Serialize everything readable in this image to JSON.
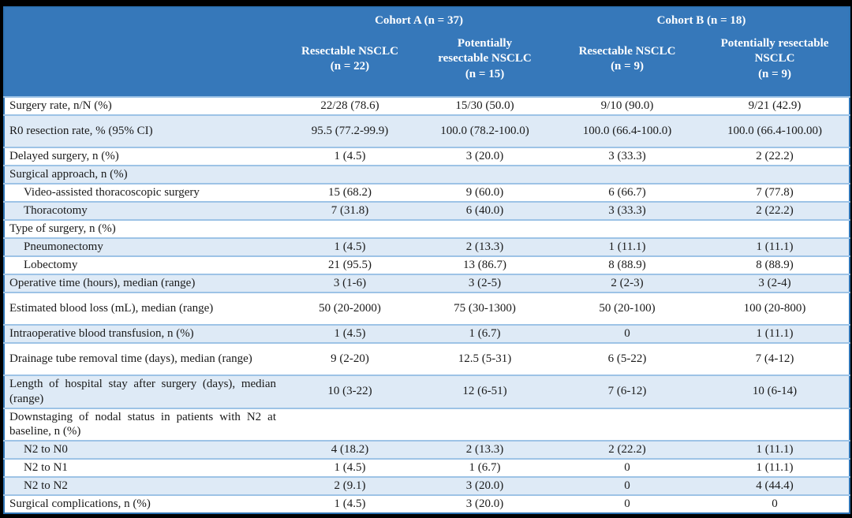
{
  "figure": {
    "description": "Surgical outcomes table for resectable and potentially resectable NSCLC cohorts"
  },
  "colors": {
    "header_blue": "#3678BA",
    "outer_border": "#2E74B5",
    "row_separator": "#9DC3E6",
    "row_shade": "#DEEAF6",
    "header_text": "#FFFFFF",
    "body_text": "#1A1A1A",
    "frame": "#000000"
  },
  "table": {
    "cohort_headers": [
      {
        "label": "Cohort A (n = 37)",
        "span": 2
      },
      {
        "label": "Cohort B (n = 18)",
        "span": 2
      }
    ],
    "column_headers": [
      "Resectable NSCLC\n(n = 22)",
      "Potentially\nresectable NSCLC\n(n = 15)",
      "Resectable NSCLC\n(n = 9)",
      "Potentially resectable\nNSCLC\n(n = 9)"
    ],
    "rows": [
      {
        "label": "Surgery rate, n/N (%)",
        "values": [
          "22/28 (78.6)",
          "15/30 (50.0)",
          "9/10 (90.0)",
          "9/21 (42.9)"
        ],
        "indent": false,
        "shaded": false,
        "tall": false
      },
      {
        "label": "R0 resection rate, % (95% CI)",
        "values": [
          "95.5 (77.2-99.9)",
          "100.0 (78.2-100.0)",
          "100.0 (66.4-100.0)",
          "100.0 (66.4-100.00)"
        ],
        "indent": false,
        "shaded": true,
        "tall": true
      },
      {
        "label": "Delayed surgery, n (%)",
        "values": [
          "1 (4.5)",
          "3 (20.0)",
          "3 (33.3)",
          "2 (22.2)"
        ],
        "indent": false,
        "shaded": false,
        "tall": false
      },
      {
        "label": "Surgical approach, n (%)",
        "values": [
          "",
          "",
          "",
          ""
        ],
        "indent": false,
        "shaded": true,
        "tall": false
      },
      {
        "label": "Video-assisted thoracoscopic surgery",
        "values": [
          "15 (68.2)",
          "9 (60.0)",
          "6 (66.7)",
          "7 (77.8)"
        ],
        "indent": true,
        "shaded": false,
        "tall": false
      },
      {
        "label": "Thoracotomy",
        "values": [
          "7 (31.8)",
          "6 (40.0)",
          "3 (33.3)",
          "2 (22.2)"
        ],
        "indent": true,
        "shaded": true,
        "tall": false
      },
      {
        "label": "Type of surgery, n (%)",
        "values": [
          "",
          "",
          "",
          ""
        ],
        "indent": false,
        "shaded": false,
        "tall": false
      },
      {
        "label": "Pneumonectomy",
        "values": [
          "1 (4.5)",
          "2 (13.3)",
          "1 (11.1)",
          "1 (11.1)"
        ],
        "indent": true,
        "shaded": true,
        "tall": false
      },
      {
        "label": "Lobectomy",
        "values": [
          "21 (95.5)",
          "13 (86.7)",
          "8 (88.9)",
          "8 (88.9)"
        ],
        "indent": true,
        "shaded": false,
        "tall": false
      },
      {
        "label": "Operative time (hours), median (range)",
        "values": [
          "3 (1-6)",
          "3 (2-5)",
          "2 (2-3)",
          "3 (2-4)"
        ],
        "indent": false,
        "shaded": true,
        "tall": false
      },
      {
        "label": "Estimated blood loss (mL), median (range)",
        "values": [
          "50 (20-2000)",
          "75 (30-1300)",
          "50 (20-100)",
          "100 (20-800)"
        ],
        "indent": false,
        "shaded": false,
        "tall": true
      },
      {
        "label": "Intraoperative blood transfusion, n (%)",
        "values": [
          "1 (4.5)",
          "1 (6.7)",
          "0",
          "1 (11.1)"
        ],
        "indent": false,
        "shaded": true,
        "tall": false
      },
      {
        "label": "Drainage tube removal time (days), median (range)",
        "values": [
          "9 (2-20)",
          "12.5 (5-31)",
          "6 (5-22)",
          "7 (4-12)"
        ],
        "indent": false,
        "shaded": false,
        "tall": true
      },
      {
        "label": "Length of hospital stay after surgery (days), median (range)",
        "values": [
          "10 (3-22)",
          "12 (6-51)",
          "7 (6-12)",
          "10 (6-14)"
        ],
        "indent": false,
        "shaded": true,
        "tall": true
      },
      {
        "label": "Downstaging of nodal status in patients with N2 at baseline, n (%)",
        "values": [
          "",
          "",
          "",
          ""
        ],
        "indent": false,
        "shaded": false,
        "tall": true
      },
      {
        "label": "N2 to N0",
        "values": [
          "4 (18.2)",
          "2 (13.3)",
          "2 (22.2)",
          "1 (11.1)"
        ],
        "indent": true,
        "shaded": true,
        "tall": false
      },
      {
        "label": "N2 to N1",
        "values": [
          "1 (4.5)",
          "1 (6.7)",
          "0",
          "1 (11.1)"
        ],
        "indent": true,
        "shaded": false,
        "tall": false
      },
      {
        "label": "N2 to N2",
        "values": [
          "2 (9.1)",
          "3 (20.0)",
          "0",
          "4 (44.4)"
        ],
        "indent": true,
        "shaded": true,
        "tall": false
      },
      {
        "label": "Surgical complications, n (%)",
        "values": [
          "1 (4.5)",
          "3 (20.0)",
          "0",
          "0"
        ],
        "indent": false,
        "shaded": false,
        "tall": false
      }
    ]
  }
}
